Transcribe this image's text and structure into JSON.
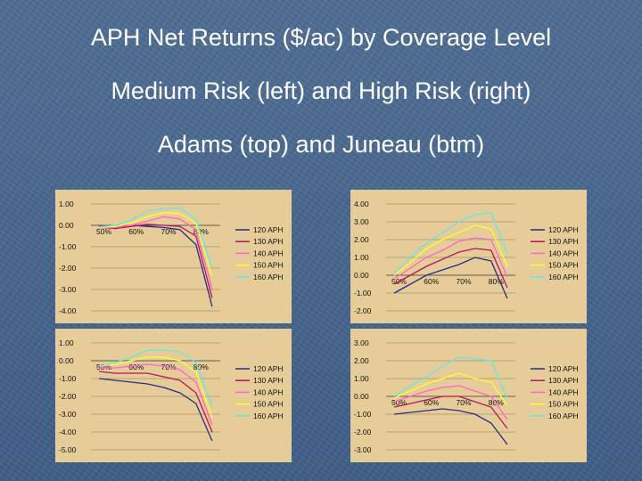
{
  "slide": {
    "title_line1": "APH Net Returns ($/ac) by Coverage Level",
    "title_line2": "Medium Risk (left) and High Risk (right)",
    "title_line3": "Adams (top) and Juneau (btm)"
  },
  "colors": {
    "background": "#47678f",
    "panel": "#e6cc98",
    "series": [
      "#2a2a8a",
      "#b3155e",
      "#ff66cc",
      "#ffff33",
      "#66e6e6"
    ]
  },
  "chart_data": [
    {
      "type": "line",
      "categories": [
        "50%",
        "55%",
        "60%",
        "65%",
        "70%",
        "75%",
        "80%",
        "85%"
      ],
      "category_labels": [
        "50%",
        "",
        "60%",
        "",
        "70%",
        "",
        "80%",
        ""
      ],
      "yticks": [
        "1.00",
        "0.00",
        "-1.00",
        "-2.00",
        "-3.00",
        "-4.00"
      ],
      "ylim": [
        -4,
        1
      ],
      "series": [
        {
          "name": "120 APH",
          "values": [
            -0.05,
            -0.1,
            0.0,
            -0.05,
            -0.1,
            -0.2,
            -0.9,
            -3.8
          ]
        },
        {
          "name": "130 APH",
          "values": [
            -0.1,
            -0.15,
            -0.05,
            0.05,
            0.0,
            -0.05,
            -0.5,
            -3.4
          ]
        },
        {
          "name": "140 APH",
          "values": [
            -0.12,
            -0.1,
            0.0,
            0.2,
            0.4,
            0.3,
            -0.2,
            -3.0
          ]
        },
        {
          "name": "150 APH",
          "values": [
            -0.1,
            -0.05,
            0.1,
            0.4,
            0.6,
            0.55,
            0.1,
            -2.4
          ]
        },
        {
          "name": "160 APH",
          "values": [
            -0.08,
            0.0,
            0.25,
            0.65,
            0.8,
            0.8,
            0.3,
            -2.0
          ]
        }
      ]
    },
    {
      "type": "line",
      "categories": [
        "50%",
        "55%",
        "60%",
        "65%",
        "70%",
        "75%",
        "80%",
        "85%"
      ],
      "category_labels": [
        "50%",
        "",
        "60%",
        "",
        "70%",
        "",
        "80%",
        ""
      ],
      "yticks": [
        "4.00",
        "3.00",
        "2.00",
        "1.00",
        "0.00",
        "-1.00",
        "-2.00"
      ],
      "ylim": [
        -2,
        4
      ],
      "series": [
        {
          "name": "120 APH",
          "values": [
            -1.0,
            -0.5,
            0.0,
            0.3,
            0.6,
            1.0,
            0.8,
            -1.3
          ]
        },
        {
          "name": "130 APH",
          "values": [
            -0.5,
            0.0,
            0.5,
            0.9,
            1.3,
            1.5,
            1.4,
            -0.7
          ]
        },
        {
          "name": "140 APH",
          "values": [
            -0.2,
            0.4,
            1.0,
            1.4,
            1.9,
            2.1,
            2.0,
            -0.1
          ]
        },
        {
          "name": "150 APH",
          "values": [
            0.0,
            0.7,
            1.5,
            2.0,
            2.4,
            2.8,
            2.6,
            0.5
          ]
        },
        {
          "name": "160 APH",
          "values": [
            0.1,
            1.0,
            1.8,
            2.4,
            3.0,
            3.4,
            3.5,
            1.2
          ]
        }
      ]
    },
    {
      "type": "line",
      "categories": [
        "50%",
        "55%",
        "60%",
        "65%",
        "70%",
        "75%",
        "80%",
        "85%"
      ],
      "category_labels": [
        "50%",
        "",
        "60%",
        "",
        "70%",
        "",
        "80%",
        ""
      ],
      "yticks": [
        "1.00",
        "0.00",
        "-1.00",
        "-2.00",
        "-3.00",
        "-4.00",
        "-5.00"
      ],
      "ylim": [
        -5,
        1
      ],
      "series": [
        {
          "name": "120 APH",
          "values": [
            -1.0,
            -1.1,
            -1.2,
            -1.3,
            -1.5,
            -1.8,
            -2.4,
            -4.5
          ]
        },
        {
          "name": "130 APH",
          "values": [
            -0.6,
            -0.7,
            -0.7,
            -0.7,
            -0.9,
            -1.1,
            -1.8,
            -4.0
          ]
        },
        {
          "name": "140 APH",
          "values": [
            -0.4,
            -0.4,
            -0.3,
            -0.2,
            -0.3,
            -0.5,
            -1.2,
            -3.6
          ]
        },
        {
          "name": "150 APH",
          "values": [
            -0.3,
            -0.2,
            0.0,
            0.2,
            0.2,
            0.0,
            -0.6,
            -3.2
          ]
        },
        {
          "name": "160 APH",
          "values": [
            -0.3,
            -0.1,
            0.2,
            0.6,
            0.6,
            0.5,
            -0.1,
            -2.6
          ]
        }
      ]
    },
    {
      "type": "line",
      "categories": [
        "50%",
        "55%",
        "60%",
        "65%",
        "70%",
        "75%",
        "80%",
        "85%"
      ],
      "category_labels": [
        "50%",
        "",
        "60%",
        "",
        "70%",
        "",
        "80%",
        ""
      ],
      "yticks": [
        "3.00",
        "2.00",
        "1.00",
        "0.00",
        "-1.00",
        "-2.00",
        "-3.00"
      ],
      "ylim": [
        -3,
        3
      ],
      "series": [
        {
          "name": "120 APH",
          "values": [
            -1.0,
            -0.9,
            -0.8,
            -0.7,
            -0.8,
            -1.0,
            -1.5,
            -2.7
          ]
        },
        {
          "name": "130 APH",
          "values": [
            -0.6,
            -0.4,
            -0.2,
            0.0,
            0.0,
            -0.3,
            -0.6,
            -1.8
          ]
        },
        {
          "name": "140 APH",
          "values": [
            -0.3,
            0.0,
            0.3,
            0.5,
            0.6,
            0.3,
            0.0,
            -1.3
          ]
        },
        {
          "name": "150 APH",
          "values": [
            -0.1,
            0.3,
            0.7,
            1.0,
            1.3,
            1.0,
            0.8,
            -0.5
          ]
        },
        {
          "name": "160 APH",
          "values": [
            0.0,
            0.6,
            1.1,
            1.7,
            2.2,
            2.1,
            2.0,
            -0.1
          ]
        }
      ]
    }
  ]
}
